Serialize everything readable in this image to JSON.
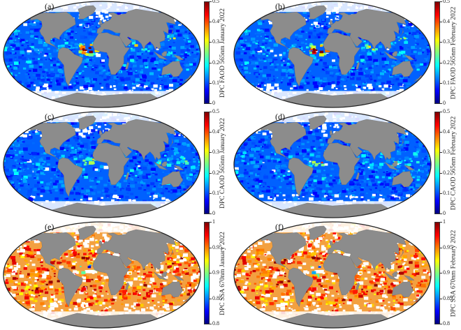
{
  "figure": {
    "colormaps": {
      "jet": [
        "#00007f",
        "#0000ff",
        "#007fff",
        "#00ffff",
        "#7fff7f",
        "#ffff00",
        "#ff7f00",
        "#ff0000",
        "#7f0000"
      ]
    },
    "colors": {
      "land": "#8c8c8c",
      "outline": "#222222",
      "nodata": "#ffffff"
    },
    "panels": [
      {
        "id": "a",
        "label": "(a)",
        "variable": "DPC FAOD 565nm January 2022",
        "ticks": [
          "0.5",
          "0.4",
          "0.3",
          "0.2",
          "0.1",
          "0"
        ],
        "tick_values": [
          0.5,
          0.4,
          0.3,
          0.2,
          0.1,
          0
        ],
        "range": [
          0,
          0.5
        ],
        "dominant": "blue",
        "features": [
          "Saharan dust plume (high)",
          "Arabian Sea (moderate)"
        ]
      },
      {
        "id": "b",
        "label": "(b)",
        "variable": "DPC FAOD 565nm February 2022",
        "ticks": [
          "0.5",
          "0.4",
          "0.3",
          "0.2",
          "0.1",
          "0"
        ],
        "tick_values": [
          0.5,
          0.4,
          0.3,
          0.2,
          0.1,
          0
        ],
        "range": [
          0,
          0.5
        ],
        "dominant": "blue",
        "features": [
          "Saharan dust plume (high)",
          "Arabian Sea (moderate)"
        ]
      },
      {
        "id": "c",
        "label": "(c)",
        "variable": "DPC CAOD 565nm January 2022",
        "ticks": [
          "0.5",
          "0.4",
          "0.3",
          "0.2",
          "0.1",
          "0"
        ],
        "tick_values": [
          0.5,
          0.4,
          0.3,
          0.2,
          0.1,
          0
        ],
        "range": [
          0,
          0.5
        ],
        "dominant": "blue",
        "features": [
          "West Africa coast (moderate)"
        ]
      },
      {
        "id": "d",
        "label": "(d)",
        "variable": "DPC CAOD 565nm February 2022",
        "ticks": [
          "0.5",
          "0.4",
          "0.3",
          "0.2",
          "0.1",
          "0"
        ],
        "tick_values": [
          0.5,
          0.4,
          0.3,
          0.2,
          0.1,
          0
        ],
        "range": [
          0,
          0.5
        ],
        "dominant": "blue",
        "features": [
          "West Africa coast (moderate)"
        ]
      },
      {
        "id": "e",
        "label": "(e)",
        "variable": "DPC SSA 670nm January 2022",
        "ticks": [
          "1",
          "0.95",
          "0.9",
          "0.85",
          "0.8"
        ],
        "tick_values": [
          1,
          0.95,
          0.9,
          0.85,
          0.8
        ],
        "range": [
          0.8,
          1
        ],
        "dominant": "orange-red",
        "features": [
          "West Africa coast (low, blue-cyan)"
        ]
      },
      {
        "id": "f",
        "label": "(f)",
        "variable": "DPC SSA 670nm February 2022",
        "ticks": [
          "1",
          "0.95",
          "0.9",
          "0.85",
          "0.8"
        ],
        "tick_values": [
          1,
          0.95,
          0.9,
          0.85,
          0.8
        ],
        "range": [
          0.8,
          1
        ],
        "dominant": "orange-red",
        "features": [
          "West Africa coast (low, blue-cyan)"
        ]
      }
    ]
  }
}
